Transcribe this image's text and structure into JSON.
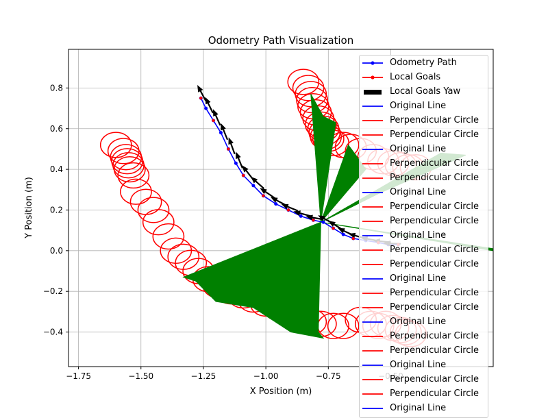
{
  "chart_data": {
    "type": "line",
    "title": "Odometry Path Visualization",
    "xlabel": "X Position (m)",
    "ylabel": "Y Position (m)",
    "xlim": [
      -1.79,
      -0.09
    ],
    "ylim": [
      -0.57,
      0.99
    ],
    "xticks": [
      -1.75,
      -1.5,
      -1.25,
      -1.0,
      -0.75,
      -0.5
    ],
    "xtick_labels": [
      "−1.75",
      "−1.50",
      "−1.25",
      "−1.00",
      "−0.75",
      "−0.50"
    ],
    "yticks": [
      -0.4,
      -0.2,
      0.0,
      0.2,
      0.4,
      0.6,
      0.8
    ],
    "ytick_labels": [
      "−0.4",
      "−0.2",
      "0.0",
      "0.2",
      "0.4",
      "0.6",
      "0.8"
    ],
    "grid": true,
    "legend_position": "right",
    "colors": {
      "path": "#0000ff",
      "goals": "#ff0000",
      "yaw": "#000000",
      "wedge": "#008000",
      "circle": "#ff0000"
    },
    "legend": [
      {
        "label": "Odometry Path",
        "kind": "line-marker",
        "color": "#0000ff"
      },
      {
        "label": "Local Goals",
        "kind": "line-marker",
        "color": "#ff0000"
      },
      {
        "label": "Local Goals Yaw",
        "kind": "arrow",
        "color": "#000000"
      },
      {
        "label": "Original Line",
        "kind": "line",
        "color": "#0000ff"
      },
      {
        "label": "Perpendicular Circle",
        "kind": "line",
        "color": "#ff0000"
      },
      {
        "label": "Perpendicular Circle",
        "kind": "line",
        "color": "#ff0000"
      },
      {
        "label": "Original Line",
        "kind": "line",
        "color": "#0000ff"
      },
      {
        "label": "Perpendicular Circle",
        "kind": "line",
        "color": "#ff0000"
      },
      {
        "label": "Perpendicular Circle",
        "kind": "line",
        "color": "#ff0000"
      },
      {
        "label": "Original Line",
        "kind": "line",
        "color": "#0000ff"
      },
      {
        "label": "Perpendicular Circle",
        "kind": "line",
        "color": "#ff0000"
      },
      {
        "label": "Perpendicular Circle",
        "kind": "line",
        "color": "#ff0000"
      },
      {
        "label": "Original Line",
        "kind": "line",
        "color": "#0000ff"
      },
      {
        "label": "Perpendicular Circle",
        "kind": "line",
        "color": "#ff0000"
      },
      {
        "label": "Perpendicular Circle",
        "kind": "line",
        "color": "#ff0000"
      },
      {
        "label": "Original Line",
        "kind": "line",
        "color": "#0000ff"
      },
      {
        "label": "Perpendicular Circle",
        "kind": "line",
        "color": "#ff0000"
      },
      {
        "label": "Perpendicular Circle",
        "kind": "line",
        "color": "#ff0000"
      },
      {
        "label": "Original Line",
        "kind": "line",
        "color": "#0000ff"
      },
      {
        "label": "Perpendicular Circle",
        "kind": "line",
        "color": "#ff0000"
      },
      {
        "label": "Perpendicular Circle",
        "kind": "line",
        "color": "#ff0000"
      },
      {
        "label": "Original Line",
        "kind": "line",
        "color": "#0000ff"
      },
      {
        "label": "Perpendicular Circle",
        "kind": "line",
        "color": "#ff0000"
      },
      {
        "label": "Perpendicular Circle",
        "kind": "line",
        "color": "#ff0000"
      },
      {
        "label": "Original Line",
        "kind": "line",
        "color": "#0000ff"
      }
    ],
    "series": [
      {
        "name": "Odometry Path",
        "color": "#0000ff",
        "x": [
          -1.26,
          -1.24,
          -1.21,
          -1.18,
          -1.15,
          -1.12,
          -1.09,
          -1.05,
          -1.01,
          -0.96,
          -0.91,
          -0.86,
          -0.81,
          -0.77,
          -0.73,
          -0.69,
          -0.65,
          -0.6,
          -0.55,
          -0.51,
          -0.47
        ],
        "y": [
          0.75,
          0.7,
          0.64,
          0.58,
          0.5,
          0.43,
          0.37,
          0.32,
          0.27,
          0.23,
          0.2,
          0.17,
          0.15,
          0.14,
          0.11,
          0.08,
          0.06,
          0.05,
          0.04,
          0.03,
          0.03
        ]
      },
      {
        "name": "Local Goals",
        "color": "#ff0000",
        "x": [
          -1.26,
          -1.21,
          -1.15,
          -1.09,
          -1.01,
          -0.91,
          -0.81,
          -0.73,
          -0.65,
          -0.55,
          -0.47
        ],
        "y": [
          0.75,
          0.64,
          0.5,
          0.37,
          0.27,
          0.2,
          0.15,
          0.11,
          0.06,
          0.04,
          0.03
        ]
      }
    ],
    "yaw_arrows": {
      "x": [
        -1.255,
        -1.225,
        -1.195,
        -1.165,
        -1.135,
        -1.105,
        -1.07,
        -1.03,
        -0.99,
        -0.945,
        -0.9,
        -0.85,
        -0.8,
        -0.755,
        -0.715,
        -0.675,
        -0.63,
        -0.58,
        -0.53,
        -0.49
      ],
      "y": [
        0.77,
        0.71,
        0.65,
        0.58,
        0.51,
        0.44,
        0.38,
        0.33,
        0.28,
        0.24,
        0.21,
        0.18,
        0.16,
        0.15,
        0.12,
        0.09,
        0.07,
        0.055,
        0.045,
        0.035
      ],
      "angle_deg": [
        118,
        116,
        114,
        112,
        110,
        112,
        128,
        138,
        146,
        152,
        158,
        165,
        170,
        152,
        148,
        155,
        165,
        170,
        175,
        178
      ]
    },
    "wedges": [
      {
        "apex": [
          -0.78,
          0.14
        ],
        "points": [
          [
            -1.33,
            -0.13
          ],
          [
            -1.28,
            -0.15
          ],
          [
            -1.2,
            -0.25
          ],
          [
            -1.05,
            -0.28
          ],
          [
            -0.9,
            -0.4
          ],
          [
            -0.77,
            -0.43
          ],
          [
            -0.79,
            -0.4
          ]
        ]
      },
      {
        "apex": [
          -0.78,
          0.14
        ],
        "points": [
          [
            -0.82,
            0.77
          ],
          [
            -0.77,
            0.66
          ],
          [
            -0.72,
            0.63
          ]
        ]
      },
      {
        "apex": [
          -0.78,
          0.14
        ],
        "points": [
          [
            -0.67,
            0.52
          ],
          [
            -0.64,
            0.47
          ],
          [
            -0.6,
            0.4
          ]
        ]
      },
      {
        "apex": [
          -0.78,
          0.14
        ],
        "points": [
          [
            -0.3,
            0.48
          ],
          [
            -0.2,
            0.47
          ],
          [
            -0.55,
            0.28
          ]
        ]
      },
      {
        "apex": [
          -0.78,
          0.14
        ],
        "points": [
          [
            -0.09,
            0.01
          ],
          [
            -0.09,
            0.0
          ]
        ]
      }
    ],
    "circles": {
      "radius": 0.062,
      "centers": [
        [
          -1.6,
          0.52
        ],
        [
          -1.57,
          0.49
        ],
        [
          -1.56,
          0.46
        ],
        [
          -1.555,
          0.44
        ],
        [
          -1.55,
          0.42
        ],
        [
          -1.545,
          0.4
        ],
        [
          -1.53,
          0.37
        ],
        [
          -1.52,
          0.29
        ],
        [
          -1.48,
          0.24
        ],
        [
          -1.45,
          0.2
        ],
        [
          -1.43,
          0.14
        ],
        [
          -1.39,
          0.07
        ],
        [
          -1.36,
          0.0
        ],
        [
          -1.33,
          -0.03
        ],
        [
          -1.3,
          -0.06
        ],
        [
          -1.27,
          -0.1
        ],
        [
          -1.23,
          -0.14
        ],
        [
          -1.19,
          -0.17
        ],
        [
          -1.14,
          -0.2
        ],
        [
          -1.09,
          -0.22
        ],
        [
          -1.05,
          -0.24
        ],
        [
          -1.0,
          -0.26
        ],
        [
          -0.95,
          -0.28
        ],
        [
          -0.9,
          -0.3
        ],
        [
          -0.86,
          -0.32
        ],
        [
          -0.82,
          -0.35
        ],
        [
          -0.78,
          -0.36
        ],
        [
          -0.73,
          -0.37
        ],
        [
          -0.69,
          -0.37
        ],
        [
          -0.62,
          -0.34
        ],
        [
          -0.58,
          -0.36
        ],
        [
          -0.55,
          -0.37
        ],
        [
          -0.52,
          -0.36
        ],
        [
          -0.49,
          -0.38
        ],
        [
          -0.46,
          -0.39
        ],
        [
          -0.44,
          -0.4
        ],
        [
          -0.42,
          -0.41
        ],
        [
          -0.85,
          0.83
        ],
        [
          -0.83,
          0.8
        ],
        [
          -0.82,
          0.77
        ],
        [
          -0.815,
          0.74
        ],
        [
          -0.81,
          0.71
        ],
        [
          -0.8,
          0.68
        ],
        [
          -0.79,
          0.65
        ],
        [
          -0.78,
          0.62
        ],
        [
          -0.77,
          0.6
        ],
        [
          -0.765,
          0.58
        ],
        [
          -0.76,
          0.56
        ],
        [
          -0.75,
          0.55
        ],
        [
          -0.73,
          0.53
        ],
        [
          -0.69,
          0.52
        ],
        [
          -0.66,
          0.51
        ],
        [
          -0.62,
          0.49
        ],
        [
          -0.57,
          0.46
        ],
        [
          -0.53,
          0.44
        ],
        [
          -0.49,
          0.43
        ],
        [
          -0.46,
          0.42
        ],
        [
          -0.43,
          0.41
        ],
        [
          -0.4,
          0.41
        ]
      ]
    }
  }
}
